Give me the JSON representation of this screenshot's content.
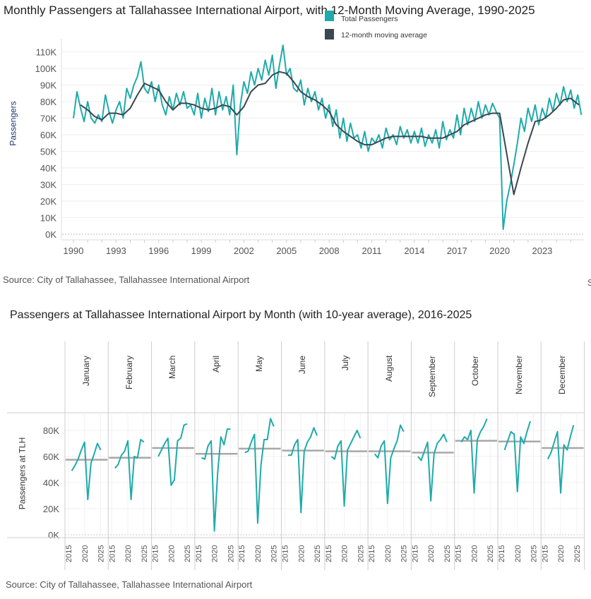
{
  "top_chart_source": "Source: City of Tallahassee, Tallahassee International Airport",
  "bottom_chart_source": "Source: City of Tallahassee, Tallahassee International Airport",
  "clipped_edge_text": "S",
  "colors": {
    "total": "#20aaaa",
    "moving_average": "#3b4650",
    "ten_year_average": "#a8a8a8",
    "ylabel_top": "#1f3a6e"
  },
  "chart_data": [
    {
      "type": "line",
      "title": "Monthly Passengers at Tallahassee International Airport, with 12-Month Moving Average, 1990-2025",
      "ylabel": "Passengers",
      "xlabel": "",
      "ylim": [
        0,
        110
      ],
      "y_unit": "K",
      "yticks": [
        "0K",
        "10K",
        "20K",
        "30K",
        "40K",
        "50K",
        "60K",
        "70K",
        "80K",
        "90K",
        "100K",
        "110K"
      ],
      "xticks": [
        "1990",
        "1993",
        "1996",
        "1999",
        "2002",
        "2005",
        "2008",
        "2011",
        "2014",
        "2017",
        "2020",
        "2023"
      ],
      "grid": true,
      "legend": {
        "position": "top-center",
        "entries": [
          "Total Passengers",
          "12-month moving average"
        ]
      },
      "series": [
        {
          "name": "Total Passengers",
          "color": "#20aaaa",
          "quarterly_points_by_year": {
            "1990": [
              70,
              86,
              76,
              68
            ],
            "1991": [
              80,
              70,
              67,
              72
            ],
            "1992": [
              68,
              84,
              74,
              67
            ],
            "1993": [
              75,
              80,
              70,
              88
            ],
            "1994": [
              82,
              90,
              95,
              104
            ],
            "1995": [
              88,
              85,
              92,
              80
            ],
            "1996": [
              90,
              78,
              72,
              83
            ],
            "1997": [
              75,
              85,
              78,
              86
            ],
            "1998": [
              76,
              78,
              72,
              85
            ],
            "1999": [
              70,
              82,
              74,
              88
            ],
            "2000": [
              72,
              86,
              75,
              83
            ],
            "2001": [
              72,
              90,
              48,
              78
            ],
            "2002": [
              92,
              85,
              98,
              90
            ],
            "2003": [
              100,
              93,
              105,
              96
            ],
            "2004": [
              108,
              88,
              102,
              114
            ],
            "2005": [
              96,
              100,
              88,
              86
            ],
            "2006": [
              93,
              78,
              88,
              80
            ],
            "2007": [
              86,
              75,
              82,
              70
            ],
            "2008": [
              78,
              65,
              75,
              58
            ],
            "2009": [
              70,
              56,
              67,
              58
            ],
            "2010": [
              60,
              52,
              62,
              50
            ],
            "2011": [
              58,
              55,
              60,
              52
            ],
            "2012": [
              64,
              57,
              60,
              54
            ],
            "2013": [
              65,
              58,
              63,
              55
            ],
            "2014": [
              62,
              55,
              64,
              53
            ],
            "2015": [
              60,
              55,
              63,
              52
            ],
            "2016": [
              68,
              57,
              63,
              58
            ],
            "2017": [
              72,
              60,
              76,
              66
            ],
            "2018": [
              76,
              68,
              80,
              70
            ],
            "2019": [
              78,
              72,
              79,
              74
            ],
            "2020": [
              70,
              3,
              20,
              30
            ],
            "2021": [
              42,
              55,
              70,
              62
            ],
            "2022": [
              76,
              68,
              78,
              66
            ],
            "2023": [
              76,
              70,
              82,
              74
            ],
            "2024": [
              85,
              78,
              89,
              80
            ],
            "2025": [
              87,
              76,
              84,
              72
            ]
          }
        },
        {
          "name": "12-month moving average",
          "color": "#3b4650",
          "points": [
            [
              "1990-07",
              78
            ],
            [
              "1991-01",
              75
            ],
            [
              "1991-07",
              71
            ],
            [
              "1992-01",
              69
            ],
            [
              "1992-07",
              73
            ],
            [
              "1993-01",
              73
            ],
            [
              "1993-07",
              72
            ],
            [
              "1994-01",
              76
            ],
            [
              "1994-07",
              84
            ],
            [
              "1995-01",
              91
            ],
            [
              "1995-07",
              89
            ],
            [
              "1996-01",
              87
            ],
            [
              "1996-07",
              80
            ],
            [
              "1997-01",
              75
            ],
            [
              "1997-07",
              79
            ],
            [
              "1998-01",
              79
            ],
            [
              "1998-07",
              78
            ],
            [
              "1999-01",
              76
            ],
            [
              "1999-07",
              75
            ],
            [
              "2000-01",
              76
            ],
            [
              "2000-07",
              78
            ],
            [
              "2001-01",
              77
            ],
            [
              "2001-07",
              72
            ],
            [
              "2002-01",
              77
            ],
            [
              "2002-07",
              86
            ],
            [
              "2003-01",
              90
            ],
            [
              "2003-07",
              91
            ],
            [
              "2004-01",
              96
            ],
            [
              "2004-07",
              98
            ],
            [
              "2005-01",
              97
            ],
            [
              "2005-07",
              92
            ],
            [
              "2006-01",
              86
            ],
            [
              "2006-07",
              83
            ],
            [
              "2007-01",
              81
            ],
            [
              "2007-07",
              78
            ],
            [
              "2008-01",
              74
            ],
            [
              "2008-07",
              66
            ],
            [
              "2009-01",
              62
            ],
            [
              "2009-07",
              59
            ],
            [
              "2010-01",
              56
            ],
            [
              "2010-07",
              54
            ],
            [
              "2011-01",
              54
            ],
            [
              "2011-07",
              56
            ],
            [
              "2012-01",
              58
            ],
            [
              "2012-07",
              59
            ],
            [
              "2013-01",
              59
            ],
            [
              "2013-07",
              59
            ],
            [
              "2014-01",
              59
            ],
            [
              "2014-07",
              59
            ],
            [
              "2015-01",
              58
            ],
            [
              "2015-07",
              58
            ],
            [
              "2016-01",
              58
            ],
            [
              "2016-07",
              60
            ],
            [
              "2017-01",
              62
            ],
            [
              "2017-07",
              66
            ],
            [
              "2018-01",
              68
            ],
            [
              "2018-07",
              70
            ],
            [
              "2019-01",
              72
            ],
            [
              "2019-07",
              73
            ],
            [
              "2020-01",
              73
            ],
            [
              "2021-01",
              24
            ],
            [
              "2021-07",
              40
            ],
            [
              "2022-01",
              55
            ],
            [
              "2022-07",
              68
            ],
            [
              "2023-01",
              69
            ],
            [
              "2023-07",
              72
            ],
            [
              "2024-01",
              76
            ],
            [
              "2024-07",
              81
            ],
            [
              "2025-01",
              82
            ],
            [
              "2025-08",
              78
            ]
          ]
        }
      ]
    },
    {
      "type": "line",
      "title": "Passengers at Tallahassee International Airport by Month (with 10-year average),  2016-2025",
      "ylabel": "Passengers at TLH",
      "ylim": [
        0,
        90
      ],
      "y_unit": "K",
      "yticks": [
        "0K",
        "20K",
        "40K",
        "60K",
        "80K"
      ],
      "xticks": [
        "2015",
        "2020",
        "2025"
      ],
      "years": [
        2016,
        2017,
        2018,
        2019,
        2020,
        2021,
        2022,
        2023,
        2024,
        2025
      ],
      "grid": true,
      "panels": [
        {
          "month": "January",
          "values": [
            49,
            53,
            58,
            65,
            71,
            27,
            55,
            62,
            70,
            65
          ],
          "ten_year_average": 57.5
        },
        {
          "month": "February",
          "values": [
            51,
            54,
            61,
            64,
            72,
            27,
            60,
            59,
            73,
            71
          ],
          "ten_year_average": 59
        },
        {
          "month": "March",
          "values": [
            60,
            65,
            70,
            74,
            38,
            42,
            72,
            74,
            84,
            85
          ],
          "ten_year_average": 66.5
        },
        {
          "month": "April",
          "values": [
            59,
            58,
            68,
            72,
            3,
            47,
            75,
            69,
            81,
            81
          ],
          "ten_year_average": 62
        },
        {
          "month": "May",
          "values": [
            63,
            64,
            71,
            77,
            9,
            53,
            73,
            73,
            89,
            83
          ],
          "ten_year_average": 66
        },
        {
          "month": "June",
          "values": [
            61,
            61,
            69,
            73,
            17,
            64,
            71,
            75,
            82,
            76
          ],
          "ten_year_average": 64.5
        },
        {
          "month": "July",
          "values": [
            60,
            58,
            68,
            72,
            22,
            65,
            70,
            75,
            80,
            74
          ],
          "ten_year_average": 64
        },
        {
          "month": "August",
          "values": [
            62,
            59,
            68,
            72,
            24,
            59,
            66,
            72,
            84,
            79
          ],
          "ten_year_average": 64
        },
        {
          "month": "September",
          "values": [
            60,
            57,
            64,
            71,
            26,
            62,
            70,
            73,
            77,
            71
          ],
          "ten_year_average": 63
        },
        {
          "month": "October",
          "values": [
            71,
            75,
            73,
            80,
            32,
            73,
            79,
            83,
            89
          ],
          "ten_year_average": 72
        },
        {
          "month": "November",
          "values": [
            65,
            72,
            79,
            77,
            33,
            75,
            70,
            79,
            87
          ],
          "ten_year_average": 71.5
        },
        {
          "month": "December",
          "values": [
            58,
            63,
            71,
            79,
            32,
            69,
            65,
            75,
            84
          ],
          "ten_year_average": 66.5
        }
      ]
    }
  ]
}
